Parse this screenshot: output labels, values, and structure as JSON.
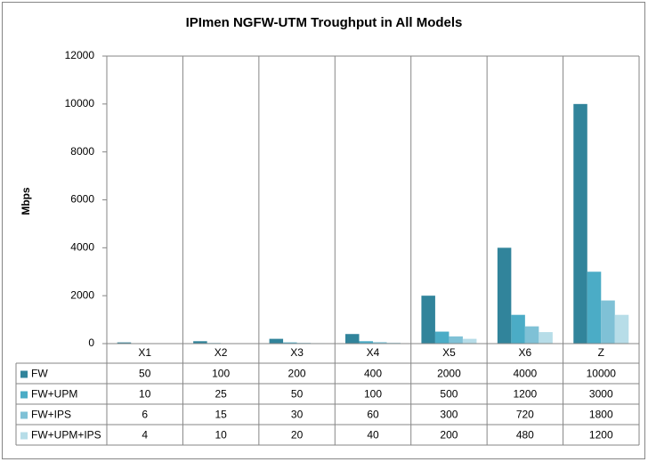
{
  "chart_data": {
    "type": "bar",
    "title": "IPImen NGFW-UTM Troughput in All Models",
    "y_label": "Mbps",
    "categories": [
      "X1",
      "X2",
      "X3",
      "X4",
      "X5",
      "X6",
      "Z"
    ],
    "series": [
      {
        "name": "FW",
        "color": "#31849b",
        "values": [
          50,
          100,
          200,
          400,
          2000,
          4000,
          10000
        ]
      },
      {
        "name": "FW+UPM",
        "color": "#4bacc6",
        "values": [
          10,
          25,
          50,
          100,
          500,
          1200,
          3000
        ]
      },
      {
        "name": "FW+IPS",
        "color": "#7fc1d6",
        "values": [
          6,
          15,
          30,
          60,
          300,
          720,
          1800
        ]
      },
      {
        "name": "FW+UPM+IPS",
        "color": "#b7dde8",
        "values": [
          4,
          10,
          20,
          40,
          200,
          480,
          1200
        ]
      }
    ],
    "ylim": [
      0,
      12000
    ],
    "yticks": [
      0,
      2000,
      4000,
      6000,
      8000,
      10000,
      12000
    ],
    "grid": false
  }
}
